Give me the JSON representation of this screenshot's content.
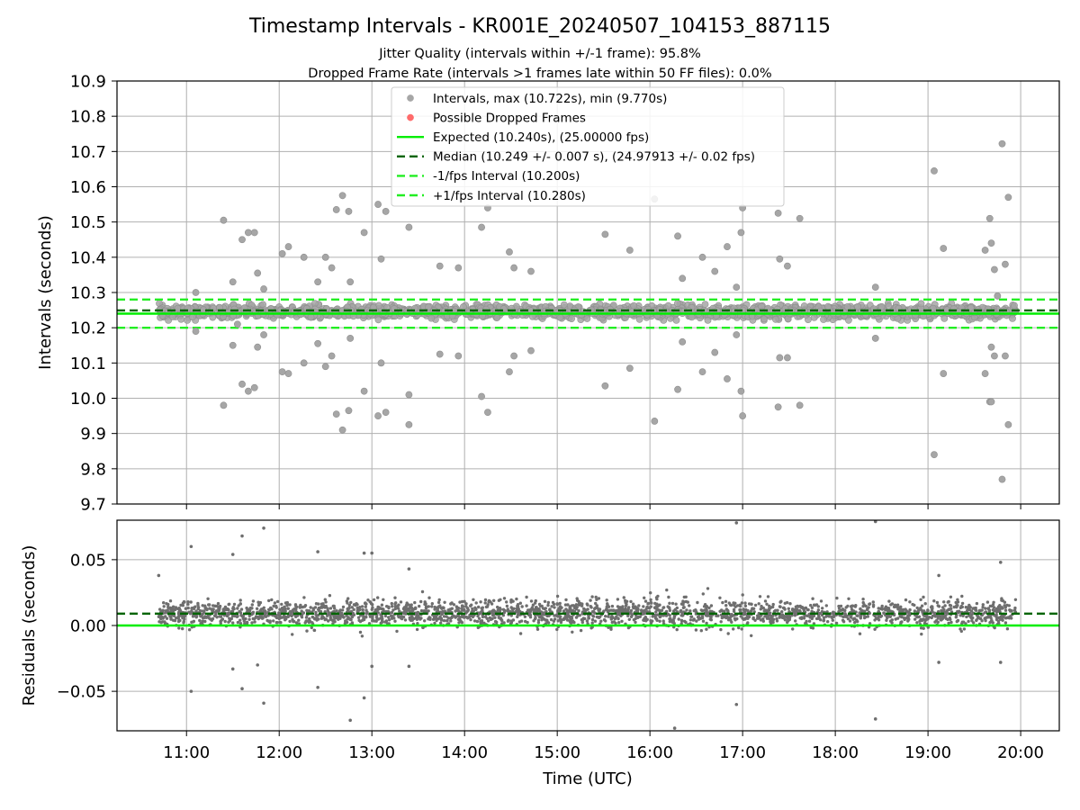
{
  "chart_data": [
    {
      "type": "scatter",
      "panel": "intervals",
      "title": "Timestamp Intervals - KR001E_20240507_104153_887115",
      "subtitle_lines": [
        "Jitter Quality (intervals within +/-1 frame): 95.8%",
        "Dropped Frame Rate (intervals >1 frames late within 50 FF files): 0.0%"
      ],
      "xlabel": "",
      "ylabel": "Intervals (seconds)",
      "xlim": [
        "10:15",
        "20:25"
      ],
      "ylim": [
        9.7,
        10.9
      ],
      "y_ticks": [
        9.7,
        9.8,
        9.9,
        10.0,
        10.1,
        10.2,
        10.3,
        10.4,
        10.5,
        10.6,
        10.7,
        10.8,
        10.9
      ],
      "x_ticks": [
        "11:00",
        "12:00",
        "13:00",
        "14:00",
        "15:00",
        "16:00",
        "17:00",
        "18:00",
        "19:00",
        "20:00"
      ],
      "grid": true,
      "legend_position": "top-center",
      "legend": [
        {
          "label": "Intervals, max (10.722s), min (9.770s)",
          "kind": "dot",
          "color": "#a6a6a6"
        },
        {
          "label": "Possible Dropped Frames",
          "kind": "dot",
          "color": "#ff6b6b"
        },
        {
          "label": "Expected (10.240s), (25.00000 fps)",
          "kind": "line",
          "color": "#00ee00"
        },
        {
          "label": "Median (10.249 +/- 0.007 s), (24.97913 +/- 0.02 fps)",
          "kind": "dashed",
          "color": "#006400"
        },
        {
          "label": "-1/fps Interval (10.200s)",
          "kind": "dashed",
          "color": "#22ee22"
        },
        {
          "label": "+1/fps Interval (10.280s)",
          "kind": "dashed",
          "color": "#22ee22"
        }
      ],
      "reference_lines": [
        {
          "name": "Expected",
          "y": 10.24,
          "color": "#00ee00",
          "style": "solid"
        },
        {
          "name": "Median",
          "y": 10.249,
          "color": "#006400",
          "style": "dashed"
        },
        {
          "name": "-1/fps Interval",
          "y": 10.2,
          "color": "#22ee22",
          "style": "dashed"
        },
        {
          "name": "+1/fps Interval",
          "y": 10.28,
          "color": "#22ee22",
          "style": "dashed"
        }
      ],
      "dense_band": {
        "x_start": "10:42",
        "x_end": "19:57",
        "y_low": 10.225,
        "y_high": 10.265
      },
      "outliers": [
        {
          "t": "11:06",
          "y": 10.3
        },
        {
          "t": "11:06",
          "y": 10.19
        },
        {
          "t": "11:24",
          "y": 10.505
        },
        {
          "t": "11:24",
          "y": 9.98
        },
        {
          "t": "11:30",
          "y": 10.33
        },
        {
          "t": "11:30",
          "y": 10.15
        },
        {
          "t": "11:33",
          "y": 10.21
        },
        {
          "t": "11:36",
          "y": 10.45
        },
        {
          "t": "11:36",
          "y": 10.04
        },
        {
          "t": "11:40",
          "y": 10.47
        },
        {
          "t": "11:40",
          "y": 10.02
        },
        {
          "t": "11:44",
          "y": 10.47
        },
        {
          "t": "11:44",
          "y": 10.03
        },
        {
          "t": "11:46",
          "y": 10.355
        },
        {
          "t": "11:46",
          "y": 10.145
        },
        {
          "t": "11:50",
          "y": 10.31
        },
        {
          "t": "11:50",
          "y": 10.18
        },
        {
          "t": "12:02",
          "y": 10.41
        },
        {
          "t": "12:02",
          "y": 10.075
        },
        {
          "t": "12:06",
          "y": 10.43
        },
        {
          "t": "12:06",
          "y": 10.07
        },
        {
          "t": "12:16",
          "y": 10.4
        },
        {
          "t": "12:16",
          "y": 10.1
        },
        {
          "t": "12:25",
          "y": 10.33
        },
        {
          "t": "12:25",
          "y": 10.155
        },
        {
          "t": "12:30",
          "y": 10.4
        },
        {
          "t": "12:30",
          "y": 10.09
        },
        {
          "t": "12:34",
          "y": 10.37
        },
        {
          "t": "12:34",
          "y": 10.12
        },
        {
          "t": "12:37",
          "y": 10.535
        },
        {
          "t": "12:37",
          "y": 9.955
        },
        {
          "t": "12:41",
          "y": 10.575
        },
        {
          "t": "12:41",
          "y": 9.91
        },
        {
          "t": "12:45",
          "y": 10.53
        },
        {
          "t": "12:45",
          "y": 9.965
        },
        {
          "t": "12:46",
          "y": 10.33
        },
        {
          "t": "12:46",
          "y": 10.17
        },
        {
          "t": "12:55",
          "y": 10.47
        },
        {
          "t": "12:55",
          "y": 10.02
        },
        {
          "t": "13:04",
          "y": 10.55
        },
        {
          "t": "13:04",
          "y": 9.95
        },
        {
          "t": "13:06",
          "y": 10.395
        },
        {
          "t": "13:06",
          "y": 10.1
        },
        {
          "t": "13:09",
          "y": 10.53
        },
        {
          "t": "13:09",
          "y": 9.96
        },
        {
          "t": "13:24",
          "y": 10.485
        },
        {
          "t": "13:24",
          "y": 10.01
        },
        {
          "t": "13:24",
          "y": 9.925
        },
        {
          "t": "13:44",
          "y": 10.375
        },
        {
          "t": "13:44",
          "y": 10.125
        },
        {
          "t": "13:56",
          "y": 10.37
        },
        {
          "t": "13:56",
          "y": 10.12
        },
        {
          "t": "14:11",
          "y": 10.485
        },
        {
          "t": "14:11",
          "y": 10.005
        },
        {
          "t": "14:15",
          "y": 10.54
        },
        {
          "t": "14:15",
          "y": 9.96
        },
        {
          "t": "14:29",
          "y": 10.415
        },
        {
          "t": "14:29",
          "y": 10.075
        },
        {
          "t": "14:32",
          "y": 10.37
        },
        {
          "t": "14:32",
          "y": 10.12
        },
        {
          "t": "14:43",
          "y": 10.36
        },
        {
          "t": "14:43",
          "y": 10.135
        },
        {
          "t": "15:31",
          "y": 10.465
        },
        {
          "t": "15:31",
          "y": 10.035
        },
        {
          "t": "15:47",
          "y": 10.42
        },
        {
          "t": "15:47",
          "y": 10.085
        },
        {
          "t": "16:03",
          "y": 10.565
        },
        {
          "t": "16:03",
          "y": 9.935
        },
        {
          "t": "16:18",
          "y": 10.46
        },
        {
          "t": "16:18",
          "y": 10.025
        },
        {
          "t": "16:21",
          "y": 10.34
        },
        {
          "t": "16:21",
          "y": 10.16
        },
        {
          "t": "16:34",
          "y": 10.4
        },
        {
          "t": "16:34",
          "y": 10.075
        },
        {
          "t": "16:42",
          "y": 10.36
        },
        {
          "t": "16:42",
          "y": 10.13
        },
        {
          "t": "16:50",
          "y": 10.43
        },
        {
          "t": "16:50",
          "y": 10.055
        },
        {
          "t": "16:56",
          "y": 10.315
        },
        {
          "t": "16:56",
          "y": 10.18
        },
        {
          "t": "16:59",
          "y": 10.47
        },
        {
          "t": "16:59",
          "y": 10.02
        },
        {
          "t": "17:00",
          "y": 10.54
        },
        {
          "t": "17:00",
          "y": 9.95
        },
        {
          "t": "17:23",
          "y": 10.525
        },
        {
          "t": "17:23",
          "y": 9.975
        },
        {
          "t": "17:24",
          "y": 10.395
        },
        {
          "t": "17:24",
          "y": 10.115
        },
        {
          "t": "17:29",
          "y": 10.375
        },
        {
          "t": "17:29",
          "y": 10.115
        },
        {
          "t": "17:37",
          "y": 10.51
        },
        {
          "t": "17:37",
          "y": 9.98
        },
        {
          "t": "18:26",
          "y": 10.315
        },
        {
          "t": "18:26",
          "y": 10.17
        },
        {
          "t": "19:04",
          "y": 10.645
        },
        {
          "t": "19:04",
          "y": 9.84
        },
        {
          "t": "19:10",
          "y": 10.425
        },
        {
          "t": "19:10",
          "y": 10.07
        },
        {
          "t": "19:37",
          "y": 10.42
        },
        {
          "t": "19:37",
          "y": 10.07
        },
        {
          "t": "19:40",
          "y": 10.51
        },
        {
          "t": "19:40",
          "y": 9.99
        },
        {
          "t": "19:41",
          "y": 10.44
        },
        {
          "t": "19:41",
          "y": 10.145
        },
        {
          "t": "19:43",
          "y": 10.365
        },
        {
          "t": "19:43",
          "y": 10.12
        },
        {
          "t": "19:45",
          "y": 10.29
        },
        {
          "t": "19:48",
          "y": 10.722
        },
        {
          "t": "19:48",
          "y": 9.77
        },
        {
          "t": "19:50",
          "y": 10.38
        },
        {
          "t": "19:50",
          "y": 10.12
        },
        {
          "t": "19:52",
          "y": 10.57
        },
        {
          "t": "19:52",
          "y": 9.925
        },
        {
          "t": "19:41",
          "y": 9.99
        }
      ]
    },
    {
      "type": "scatter",
      "panel": "residuals",
      "xlabel": "Time (UTC)",
      "ylabel": "Residuals (seconds)",
      "xlim": [
        "10:15",
        "20:25"
      ],
      "ylim": [
        -0.08,
        0.08
      ],
      "y_ticks": [
        -0.05,
        0.0,
        0.05
      ],
      "y_tick_labels": [
        "−0.05",
        "0.00",
        "0.05"
      ],
      "x_ticks": [
        "11:00",
        "12:00",
        "13:00",
        "14:00",
        "15:00",
        "16:00",
        "17:00",
        "18:00",
        "19:00",
        "20:00"
      ],
      "grid": true,
      "reference_lines": [
        {
          "name": "Expected",
          "y": 0.0,
          "color": "#00ee00",
          "style": "solid"
        },
        {
          "name": "Median",
          "y": 0.009,
          "color": "#006400",
          "style": "dashed"
        }
      ],
      "dense_band": {
        "x_start": "10:42",
        "x_end": "19:57",
        "center": 0.009,
        "spread": 0.012
      },
      "outliers": [
        {
          "t": "10:42",
          "y": 0.038
        },
        {
          "t": "11:03",
          "y": 0.06
        },
        {
          "t": "11:03",
          "y": -0.05
        },
        {
          "t": "11:30",
          "y": 0.054
        },
        {
          "t": "11:30",
          "y": -0.033
        },
        {
          "t": "11:36",
          "y": 0.068
        },
        {
          "t": "11:36",
          "y": -0.048
        },
        {
          "t": "11:46",
          "y": -0.03
        },
        {
          "t": "11:50",
          "y": 0.074
        },
        {
          "t": "11:50",
          "y": -0.059
        },
        {
          "t": "12:25",
          "y": 0.056
        },
        {
          "t": "12:25",
          "y": -0.047
        },
        {
          "t": "12:46",
          "y": -0.072
        },
        {
          "t": "12:55",
          "y": 0.055
        },
        {
          "t": "12:55",
          "y": -0.055
        },
        {
          "t": "13:00",
          "y": 0.055
        },
        {
          "t": "13:00",
          "y": -0.031
        },
        {
          "t": "13:24",
          "y": 0.043
        },
        {
          "t": "13:24",
          "y": -0.031
        },
        {
          "t": "16:16",
          "y": -0.078
        },
        {
          "t": "16:56",
          "y": 0.078
        },
        {
          "t": "16:56",
          "y": -0.06
        },
        {
          "t": "18:26",
          "y": 0.079
        },
        {
          "t": "18:26",
          "y": -0.071
        },
        {
          "t": "19:07",
          "y": 0.038
        },
        {
          "t": "19:07",
          "y": -0.028
        },
        {
          "t": "19:47",
          "y": 0.048
        },
        {
          "t": "19:47",
          "y": -0.028
        }
      ]
    }
  ]
}
